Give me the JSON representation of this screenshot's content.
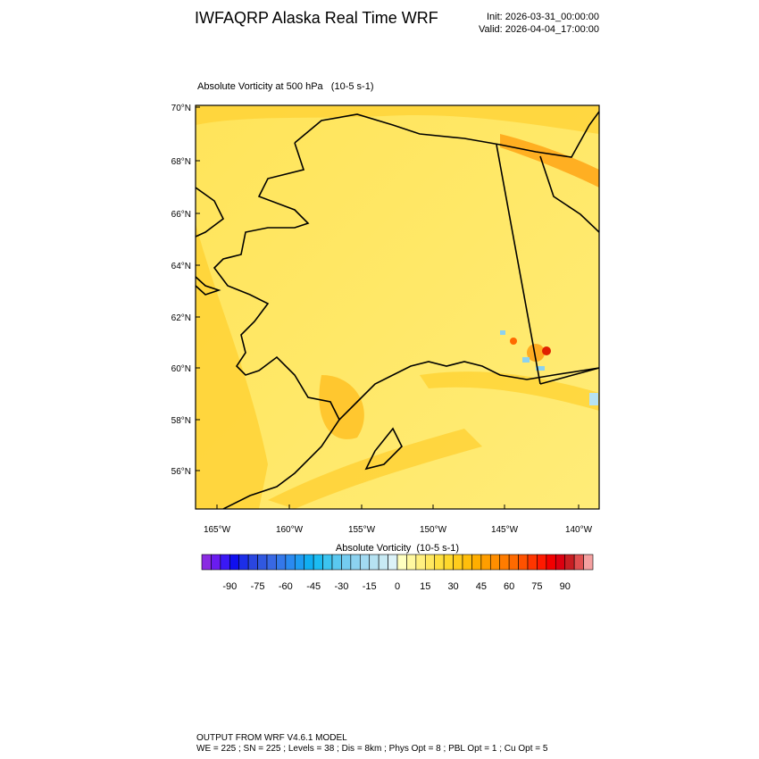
{
  "header": {
    "title": "IWFAQRP Alaska Real Time WRF",
    "init": "Init: 2026-03-31_00:00:00",
    "valid": "Valid: 2026-04-04_17:00:00"
  },
  "plot": {
    "title": "Absolute Vorticity at 500 hPa   (10-5 s-1)",
    "lat_labels": [
      "70°N",
      "68°N",
      "66°N",
      "64°N",
      "62°N",
      "60°N",
      "58°N",
      "56°N"
    ],
    "lon_labels": [
      "165°W",
      "160°W",
      "155°W",
      "150°W",
      "145°W",
      "140°W"
    ]
  },
  "colorbar": {
    "title": "Absolute Vorticity  (10-5 s-1)",
    "labels": [
      -90,
      -75,
      -60,
      -45,
      -30,
      -15,
      0,
      15,
      30,
      45,
      60,
      75,
      90
    ],
    "colors": [
      "#8a2be2",
      "#6a1cf0",
      "#3a18f5",
      "#1010f0",
      "#1c2ee8",
      "#2a46e0",
      "#3058e0",
      "#3868e4",
      "#3478ea",
      "#2a8af0",
      "#1e9cf2",
      "#10aef2",
      "#1cbcf2",
      "#3cc4f0",
      "#5ac8f0",
      "#74ccf0",
      "#8cd2f0",
      "#a2daf2",
      "#b6e2f2",
      "#c8eaf4",
      "#dcf2f8",
      "#ffffc0",
      "#fff8a0",
      "#fff080",
      "#ffe860",
      "#ffe040",
      "#ffd82c",
      "#ffcc1c",
      "#ffbe0c",
      "#ffae00",
      "#ff9e00",
      "#ff8e00",
      "#ff7c00",
      "#ff6a00",
      "#ff5200",
      "#ff3600",
      "#ff1a00",
      "#f20000",
      "#dc0010",
      "#c81e22",
      "#e05050",
      "#f4a0a0"
    ]
  },
  "footer": {
    "line1": "OUTPUT FROM WRF V4.6.1 MODEL",
    "line2": "WE = 225 ; SN = 225 ; Levels = 38 ; Dis = 8km ; Phys Opt = 8 ; PBL Opt = 1 ; Cu Opt = 5"
  }
}
